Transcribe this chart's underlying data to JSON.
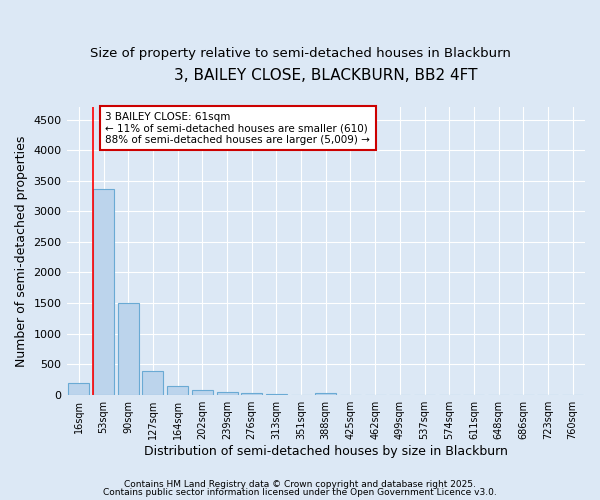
{
  "title": "3, BAILEY CLOSE, BLACKBURN, BB2 4FT",
  "subtitle": "Size of property relative to semi-detached houses in Blackburn",
  "xlabel": "Distribution of semi-detached houses by size in Blackburn",
  "ylabel": "Number of semi-detached properties",
  "bin_labels": [
    "16sqm",
    "53sqm",
    "90sqm",
    "127sqm",
    "164sqm",
    "202sqm",
    "239sqm",
    "276sqm",
    "313sqm",
    "351sqm",
    "388sqm",
    "425sqm",
    "462sqm",
    "499sqm",
    "537sqm",
    "574sqm",
    "611sqm",
    "648sqm",
    "686sqm",
    "723sqm",
    "760sqm"
  ],
  "bar_heights": [
    185,
    3360,
    1500,
    380,
    145,
    80,
    50,
    30,
    15,
    0,
    35,
    0,
    0,
    0,
    0,
    0,
    0,
    0,
    0,
    0,
    0
  ],
  "bar_color": "#bcd4ec",
  "bar_edge_color": "#6aaad4",
  "red_line_x": 0.575,
  "annotation_text": "3 BAILEY CLOSE: 61sqm\n← 11% of semi-detached houses are smaller (610)\n88% of semi-detached houses are larger (5,009) →",
  "annotation_box_color": "#ffffff",
  "annotation_box_edge_color": "#cc0000",
  "ylim": [
    0,
    4700
  ],
  "yticks": [
    0,
    500,
    1000,
    1500,
    2000,
    2500,
    3000,
    3500,
    4000,
    4500
  ],
  "footer1": "Contains HM Land Registry data © Crown copyright and database right 2025.",
  "footer2": "Contains public sector information licensed under the Open Government Licence v3.0.",
  "background_color": "#dce8f5",
  "plot_background_color": "#dce8f5",
  "grid_color": "#ffffff",
  "title_fontsize": 11,
  "subtitle_fontsize": 9.5,
  "tick_fontsize": 7,
  "label_fontsize": 9,
  "annotation_fontsize": 7.5,
  "footer_fontsize": 6.5
}
